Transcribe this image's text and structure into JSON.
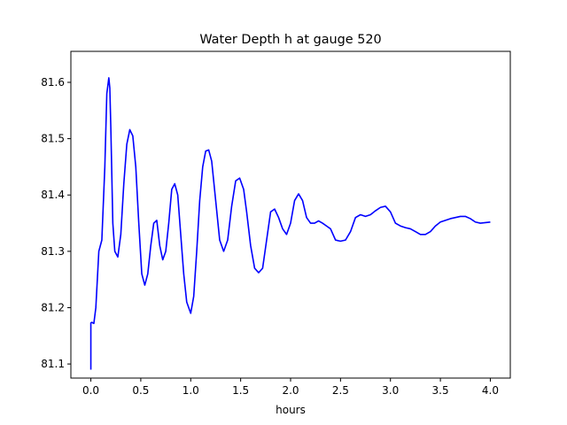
{
  "chart_data": {
    "type": "line",
    "title": "Water Depth h at gauge 520",
    "xlabel": "hours",
    "ylabel": "",
    "xlim": [
      -0.2,
      4.2
    ],
    "ylim": [
      81.075,
      81.655
    ],
    "xticks": [
      0.0,
      0.5,
      1.0,
      1.5,
      2.0,
      2.5,
      3.0,
      3.5,
      4.0
    ],
    "xtick_labels": [
      "0.0",
      "0.5",
      "1.0",
      "1.5",
      "2.0",
      "2.5",
      "3.0",
      "3.5",
      "4.0"
    ],
    "yticks": [
      81.1,
      81.2,
      81.3,
      81.4,
      81.5,
      81.6
    ],
    "ytick_labels": [
      "81.1",
      "81.2",
      "81.3",
      "81.4",
      "81.5",
      "81.6"
    ],
    "grid": false,
    "series": [
      {
        "color": "#0000ff",
        "x": [
          0.0,
          0.0,
          0.01,
          0.03,
          0.05,
          0.08,
          0.11,
          0.14,
          0.16,
          0.18,
          0.19,
          0.2,
          0.22,
          0.24,
          0.27,
          0.3,
          0.33,
          0.36,
          0.39,
          0.42,
          0.45,
          0.48,
          0.51,
          0.54,
          0.57,
          0.6,
          0.63,
          0.66,
          0.69,
          0.72,
          0.75,
          0.78,
          0.81,
          0.84,
          0.87,
          0.9,
          0.93,
          0.96,
          1.0,
          1.03,
          1.06,
          1.09,
          1.12,
          1.15,
          1.18,
          1.21,
          1.25,
          1.29,
          1.33,
          1.37,
          1.41,
          1.45,
          1.49,
          1.53,
          1.56,
          1.6,
          1.64,
          1.68,
          1.72,
          1.76,
          1.8,
          1.84,
          1.88,
          1.92,
          1.96,
          2.0,
          2.04,
          2.08,
          2.12,
          2.16,
          2.2,
          2.24,
          2.28,
          2.32,
          2.36,
          2.4,
          2.45,
          2.5,
          2.55,
          2.6,
          2.65,
          2.7,
          2.75,
          2.8,
          2.85,
          2.9,
          2.95,
          3.0,
          3.05,
          3.1,
          3.15,
          3.2,
          3.25,
          3.3,
          3.35,
          3.4,
          3.45,
          3.5,
          3.55,
          3.6,
          3.65,
          3.7,
          3.75,
          3.8,
          3.85,
          3.9,
          3.95,
          4.0
        ],
        "values": [
          81.09,
          81.173,
          81.174,
          81.172,
          81.2,
          81.3,
          81.32,
          81.45,
          81.58,
          81.608,
          81.59,
          81.52,
          81.35,
          81.3,
          81.29,
          81.33,
          81.42,
          81.49,
          81.516,
          81.505,
          81.45,
          81.35,
          81.26,
          81.24,
          81.26,
          81.31,
          81.35,
          81.355,
          81.31,
          81.285,
          81.3,
          81.35,
          81.41,
          81.42,
          81.4,
          81.33,
          81.26,
          81.21,
          81.19,
          81.22,
          81.3,
          81.39,
          81.45,
          81.478,
          81.48,
          81.46,
          81.39,
          81.32,
          81.3,
          81.32,
          81.38,
          81.425,
          81.43,
          81.41,
          81.37,
          81.31,
          81.27,
          81.262,
          81.27,
          81.32,
          81.37,
          81.375,
          81.36,
          81.34,
          81.33,
          81.35,
          81.39,
          81.402,
          81.39,
          81.36,
          81.35,
          81.35,
          81.354,
          81.35,
          81.345,
          81.34,
          81.32,
          81.318,
          81.32,
          81.335,
          81.36,
          81.365,
          81.362,
          81.365,
          81.372,
          81.378,
          81.38,
          81.37,
          81.35,
          81.345,
          81.342,
          81.34,
          81.335,
          81.33,
          81.33,
          81.335,
          81.345,
          81.352,
          81.355,
          81.358,
          81.36,
          81.362,
          81.362,
          81.358,
          81.352,
          81.35,
          81.351,
          81.352
        ]
      }
    ]
  }
}
